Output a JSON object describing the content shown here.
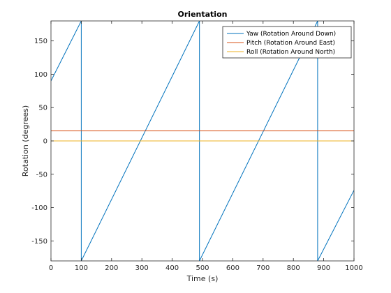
{
  "chart_data": {
    "type": "line",
    "title": "Orientation",
    "xlabel": "Time (s)",
    "ylabel": "Rotation (degrees)",
    "xlim": [
      0,
      1000
    ],
    "ylim": [
      -180,
      180
    ],
    "xticks": [
      0,
      100,
      200,
      300,
      400,
      500,
      600,
      700,
      800,
      900,
      1000
    ],
    "yticks": [
      -150,
      -100,
      -50,
      0,
      50,
      100,
      150
    ],
    "grid": false,
    "legend_position": "top-right",
    "series": [
      {
        "name": "Yaw (Rotation Around Down)",
        "color": "#0072BD",
        "points": [
          [
            0,
            90
          ],
          [
            100,
            180
          ],
          [
            100,
            -180
          ],
          [
            490,
            180
          ],
          [
            490,
            -180
          ],
          [
            880,
            180
          ],
          [
            880,
            -180
          ],
          [
            1000,
            -74
          ]
        ]
      },
      {
        "name": "Pitch (Rotation Around East)",
        "color": "#D95319",
        "points": [
          [
            0,
            15
          ],
          [
            1000,
            15
          ]
        ]
      },
      {
        "name": "Roll (Rotation Around North)",
        "color": "#EDB120",
        "points": [
          [
            0,
            0
          ],
          [
            1000,
            0
          ]
        ]
      }
    ]
  }
}
